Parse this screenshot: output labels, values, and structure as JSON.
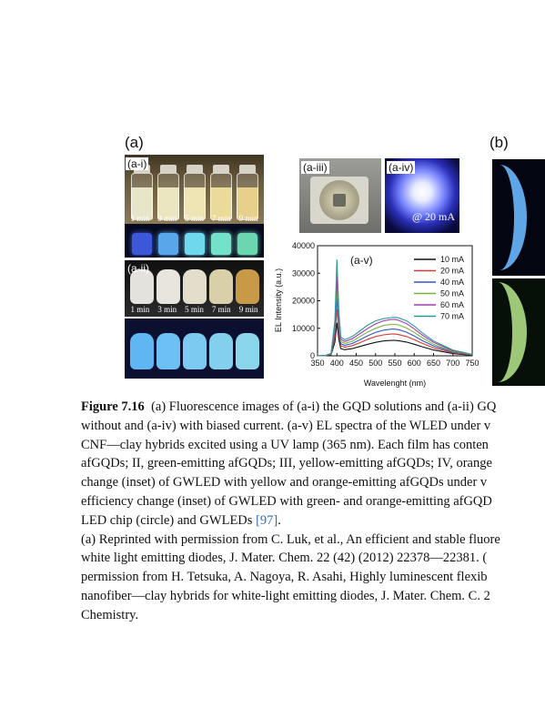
{
  "figure": {
    "panel_a_label": "(a)",
    "panel_b_label": "(b)",
    "sublabels": {
      "a_i": "(a-i)",
      "a_ii": "(a-ii)",
      "a_iii": "(a-iii)",
      "a_iv": "(a-iv)",
      "a_v": "(a-v)"
    },
    "vial_times_i": [
      "1 min",
      "3 min",
      "5 min",
      "7 min",
      "9 min"
    ],
    "vial_times_ii": [
      "1 min",
      "3 min",
      "5 min",
      "7 min",
      "9 min"
    ],
    "current_label": "@ 20 mA",
    "vial_colors_daylight": [
      "#e9e5c9",
      "#ece6c0",
      "#efe4b3",
      "#eadc98",
      "#e6d08a"
    ],
    "vial_colors_uv": [
      "#3c58d8",
      "#5aa6ea",
      "#6fd8ec",
      "#74e2c8",
      "#6bd6b0"
    ],
    "film_colors_daylight": [
      "#e4e2dc",
      "#e8e5dc",
      "#e3ddcc",
      "#d9cfa8",
      "#c89a48"
    ],
    "film_colors_uv": [
      "#5fb6f2",
      "#6cc0f4",
      "#7ccaf2",
      "#82d0ee",
      "#8ad6ea"
    ]
  },
  "chart_data": {
    "type": "line",
    "title": "(a-v)",
    "xlabel": "Wavelenght (nm)",
    "ylabel": "EL Intensity (a.u.)",
    "xlim": [
      350,
      750
    ],
    "ylim": [
      0,
      40000
    ],
    "xticks": [
      350,
      400,
      450,
      500,
      550,
      600,
      650,
      700,
      750
    ],
    "yticks": [
      0,
      10000,
      20000,
      30000,
      40000
    ],
    "legend_position": "top-right",
    "x": [
      350,
      370,
      385,
      395,
      400,
      405,
      410,
      420,
      440,
      460,
      480,
      500,
      520,
      540,
      550,
      560,
      580,
      600,
      620,
      650,
      700,
      750
    ],
    "series": [
      {
        "name": "10 mA",
        "color": "#111111",
        "values": [
          0,
          50,
          400,
          5000,
          12000,
          6000,
          2600,
          2200,
          2600,
          3400,
          4200,
          4900,
          5400,
          5600,
          5600,
          5500,
          5000,
          4200,
          3300,
          2100,
          800,
          200
        ]
      },
      {
        "name": "20 mA",
        "color": "#d03a3a",
        "values": [
          0,
          60,
          500,
          7000,
          17000,
          8500,
          3600,
          3100,
          3700,
          4800,
          6000,
          7000,
          7600,
          7900,
          7900,
          7700,
          7000,
          5900,
          4600,
          2900,
          1100,
          300
        ]
      },
      {
        "name": "40 mA",
        "color": "#3355cc",
        "values": [
          0,
          70,
          600,
          8600,
          21000,
          10500,
          4400,
          3800,
          4500,
          5900,
          7300,
          8500,
          9300,
          9700,
          9700,
          9500,
          8600,
          7200,
          5600,
          3600,
          1400,
          350
        ]
      },
      {
        "name": "50 mA",
        "color": "#7ab33a",
        "values": [
          0,
          80,
          700,
          10000,
          25000,
          12500,
          5200,
          4500,
          5300,
          7000,
          8700,
          10000,
          11000,
          11400,
          11400,
          11200,
          10100,
          8500,
          6600,
          4200,
          1600,
          400
        ]
      },
      {
        "name": "60 mA",
        "color": "#a43ab0",
        "values": [
          0,
          90,
          800,
          11500,
          29000,
          14500,
          6000,
          5200,
          6200,
          8100,
          10000,
          11600,
          12700,
          13200,
          13200,
          12900,
          11700,
          9800,
          7600,
          4900,
          1900,
          450
        ]
      },
      {
        "name": "70 mA",
        "color": "#2a9a98",
        "values": [
          0,
          100,
          900,
          13000,
          35000,
          16500,
          6800,
          5900,
          7000,
          9100,
          11200,
          12700,
          13500,
          13900,
          14000,
          13800,
          12700,
          10800,
          8400,
          5400,
          2100,
          500
        ]
      }
    ]
  },
  "caption": {
    "fig_num": "Figure 7.16",
    "line1": "  (a) Fluorescence images of (a-i) the GQD solutions and (a-ii) GQ",
    "line2": "without and (a-iv) with biased current. (a-v) EL spectra of the WLED under v",
    "line3": "CNF—clay hybrids excited using a UV lamp (365 nm). Each film has conten",
    "line4": "afGQDs; II, green-emitting afGQDs; III, yellow-emitting afGQDs; IV, orange",
    "line5": "change (inset) of GWLED with yellow and orange-emitting afGQDs under v",
    "line6": "efficiency change (inset) of GWLED with green- and orange-emitting afGQD",
    "line7_pre": "LED chip (circle) and GWLEDs ",
    "line7_ref": "[97]",
    "line7_post": ".",
    "line8": "(a) Reprinted with permission from C. Luk, et al., An efficient and stable fluore",
    "line9": "white light emitting diodes, J. Mater. Chem. 22 (42) (2012) 22378—22381. (",
    "line10": "permission from H. Tetsuka, A. Nagoya, R. Asahi, Highly luminescent flexib",
    "line11": "nanofiber—clay hybrids for white-light emitting diodes, J. Mater. Chem. C. 2",
    "line12": "Chemistry."
  }
}
